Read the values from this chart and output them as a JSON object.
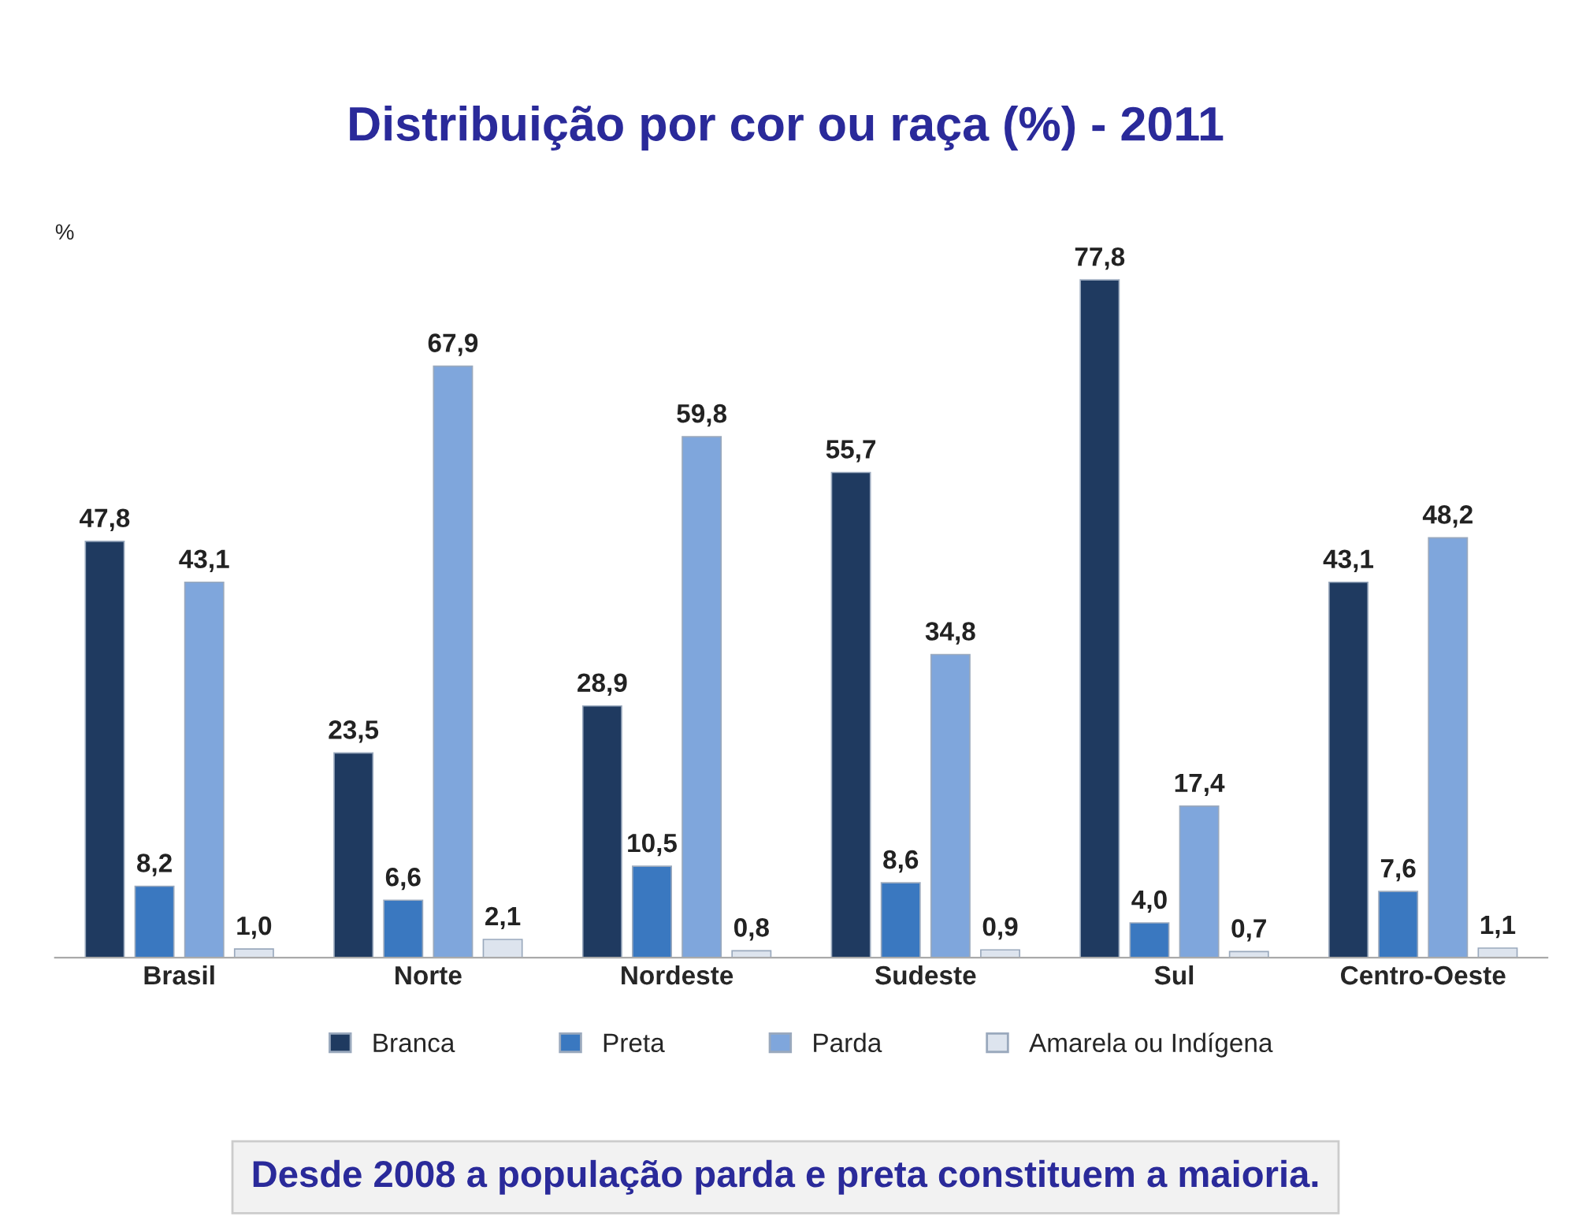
{
  "chart_data": {
    "type": "bar",
    "title": "Distribuição por cor ou raça (%) - 2011",
    "ylabel": "%",
    "categories": [
      "Brasil",
      "Norte",
      "Nordeste",
      "Sudeste",
      "Sul",
      "Centro-Oeste"
    ],
    "series": [
      {
        "name": "Branca",
        "color": "#1f3a60",
        "values": [
          47.8,
          23.5,
          28.9,
          55.7,
          77.8,
          43.1
        ],
        "value_labels": [
          "47,8",
          "23,5",
          "28,9",
          "55,7",
          "77,8",
          "43,1"
        ]
      },
      {
        "name": "Preta",
        "color": "#3a78c0",
        "values": [
          8.2,
          6.6,
          10.5,
          8.6,
          4.0,
          7.6
        ],
        "value_labels": [
          "8,2",
          "6,6",
          "10,5",
          "8,6",
          "4,0",
          "7,6"
        ]
      },
      {
        "name": "Parda",
        "color": "#7fa6dc",
        "values": [
          43.1,
          67.9,
          59.8,
          34.8,
          17.4,
          48.2
        ],
        "value_labels": [
          "43,1",
          "67,9",
          "59,8",
          "34,8",
          "17,4",
          "48,2"
        ]
      },
      {
        "name": "Amarela ou Indígena",
        "color": "#dde4ee",
        "values": [
          1.0,
          2.1,
          0.8,
          0.9,
          0.7,
          1.1
        ],
        "value_labels": [
          "1,0",
          "2,1",
          "0,8",
          "0,9",
          "0,7",
          "1,1"
        ]
      }
    ],
    "legend": "bottom",
    "grid": false,
    "tick_labels": "x",
    "annotations": [
      "Desde 2008 a população parda e preta constituem a maioria."
    ]
  }
}
